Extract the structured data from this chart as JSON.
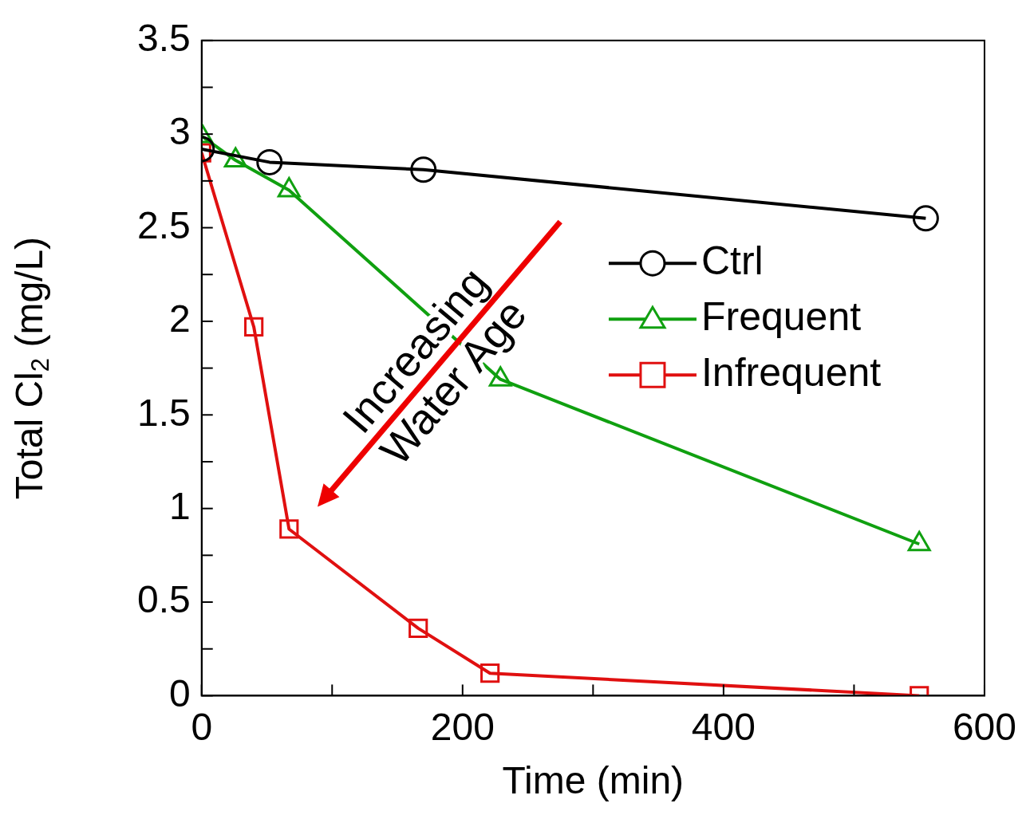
{
  "chart_data": {
    "type": "line",
    "xlabel": "Time (min)",
    "ylabel": "Total Cl$_{2}$ (mg/L)",
    "xlim": [
      0,
      600
    ],
    "ylim": [
      0,
      3.5
    ],
    "xticks": [
      0,
      {
        "value": 100,
        "label": null
      },
      200,
      {
        "value": 300,
        "label": null
      },
      400,
      {
        "value": 500,
        "label": null
      },
      600
    ],
    "yticks": [
      0,
      {
        "value": 0.25,
        "label": null
      },
      0.5,
      {
        "value": 0.75,
        "label": null
      },
      1,
      {
        "value": 1.25,
        "label": null
      },
      1.5,
      {
        "value": 1.75,
        "label": null
      },
      2,
      {
        "value": 2.25,
        "label": null
      },
      2.5,
      {
        "value": 2.75,
        "label": null
      },
      3,
      {
        "value": 3.25,
        "label": null
      },
      3.5
    ],
    "legend": "right",
    "grid": false,
    "annotations": [
      "Increasing\nWater Age"
    ],
    "series": [
      {
        "name": "Ctrl",
        "color": "#000000",
        "marker": "circle",
        "x": [
          0,
          52,
          170,
          555
        ],
        "values": [
          2.92,
          2.85,
          2.81,
          2.55
        ]
      },
      {
        "name": "Frequent",
        "color": "#10a010",
        "marker": "triangle",
        "x": [
          0,
          26,
          67,
          229,
          550
        ],
        "values": [
          2.99,
          2.86,
          2.7,
          1.69,
          0.81
        ]
      },
      {
        "name": "Infrequent",
        "color": "#e01010",
        "marker": "square",
        "x": [
          0,
          40,
          67,
          166,
          221,
          550
        ],
        "values": [
          2.9,
          1.97,
          0.89,
          0.36,
          0.12,
          0
        ]
      }
    ]
  }
}
